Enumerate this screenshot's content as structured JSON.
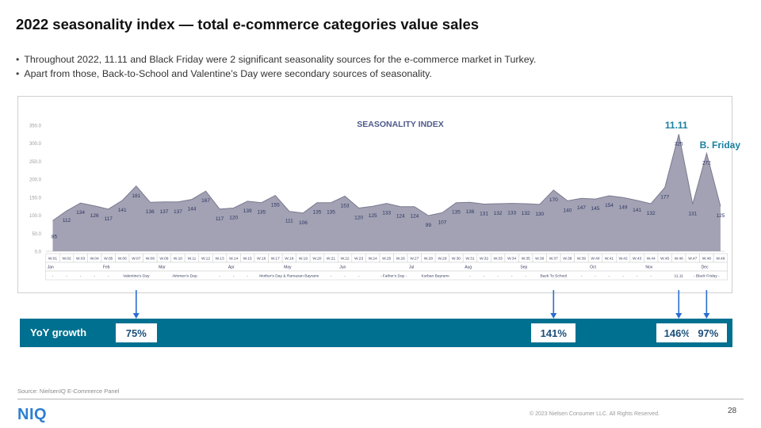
{
  "title": "2022 seasonality index — total e-commerce categories value sales",
  "bullets": [
    "Throughout 2022, 11.11 and Black Friday were 2 significant seasonality sources for the e-commerce market in Turkey.",
    "Apart from those, Back-to-School and Valentine’s Day were secondary sources of seasonality."
  ],
  "chart_data": {
    "type": "area",
    "title": "SEASONALITY INDEX",
    "ylim": [
      0,
      350
    ],
    "yticks": [
      "0.0",
      "50.0",
      "100.0",
      "150.0",
      "200.0",
      "250.0",
      "300.0",
      "350.0"
    ],
    "categories": [
      "W.01",
      "W.02",
      "W.03",
      "W.04",
      "W.05",
      "W.06",
      "W.07",
      "W.08",
      "W.09",
      "W.10",
      "W.11",
      "W.12",
      "W.13",
      "W.14",
      "W.15",
      "W.16",
      "W.17",
      "W.18",
      "W.19",
      "W.20",
      "W.21",
      "W.22",
      "W.23",
      "W.24",
      "W.25",
      "W.26",
      "W.27",
      "W.28",
      "W.29",
      "W.30",
      "W.31",
      "W.32",
      "W.33",
      "W.34",
      "W.35",
      "W.36",
      "W.37",
      "W.38",
      "W.39",
      "W.40",
      "W.41",
      "W.42",
      "W.43",
      "W.44",
      "W.45",
      "W.46",
      "W.47",
      "W.48",
      "W.49"
    ],
    "values": [
      85,
      112,
      134,
      126,
      117,
      141,
      181,
      136,
      137,
      137,
      144,
      167,
      117,
      120,
      139,
      135,
      155,
      111,
      106,
      135,
      135,
      153,
      120,
      125,
      133,
      124,
      124,
      99,
      107,
      135,
      136,
      131,
      132,
      133,
      132,
      130,
      170,
      140,
      147,
      145,
      154,
      149,
      141,
      132,
      177,
      325,
      131,
      272,
      125
    ],
    "months": [
      {
        "week_index": 0,
        "label": "Jan"
      },
      {
        "week_index": 4,
        "label": "Feb"
      },
      {
        "week_index": 8,
        "label": "Mar"
      },
      {
        "week_index": 13,
        "label": "Apr"
      },
      {
        "week_index": 17,
        "label": "May"
      },
      {
        "week_index": 21,
        "label": "Jun"
      },
      {
        "week_index": 26,
        "label": "Jul"
      },
      {
        "week_index": 30,
        "label": "Aug"
      },
      {
        "week_index": 34,
        "label": "Sep"
      },
      {
        "week_index": 39,
        "label": "Oct"
      },
      {
        "week_index": 43,
        "label": "Nov"
      },
      {
        "week_index": 47,
        "label": "Dec"
      }
    ],
    "events": [
      {
        "start": 6,
        "end": 6,
        "label": "Valentine's Day"
      },
      {
        "start": 9,
        "end": 10,
        "label": "-Women's Day-"
      },
      {
        "start": 16,
        "end": 18,
        "label": "Mother's Day & Ramazan Bayramı"
      },
      {
        "start": 24,
        "end": 25,
        "label": "- Father's Day -"
      },
      {
        "start": 27,
        "end": 28,
        "label": "Kurban Bayramı"
      },
      {
        "start": 36,
        "end": 36,
        "label": "Back To School"
      },
      {
        "start": 45,
        "end": 45,
        "label": "11.11"
      },
      {
        "start": 47,
        "end": 47,
        "label": "- Black Friday -"
      }
    ],
    "annotations": [
      {
        "week_index": 45,
        "label": "11.11"
      },
      {
        "week_index": 47,
        "label": "B. Friday"
      }
    ],
    "series_color": "#9a9aae",
    "line_color": "#7a7a90"
  },
  "yoy": {
    "label": "YoY growth",
    "items": [
      {
        "week_index": 6,
        "value": "75%"
      },
      {
        "week_index": 36,
        "value": "141%"
      },
      {
        "week_index": 45,
        "value": "146%"
      },
      {
        "week_index": 47,
        "value": "97%"
      }
    ],
    "bar_color": "#007090",
    "arrow_color": "#2a6ecf"
  },
  "source": "Source: NielsenIQ E-Commerce Panel",
  "logo": "NIQ",
  "copyright": "© 2023 Nielsen Consumer LLC. All Rights Reserved.",
  "page_number": "28"
}
